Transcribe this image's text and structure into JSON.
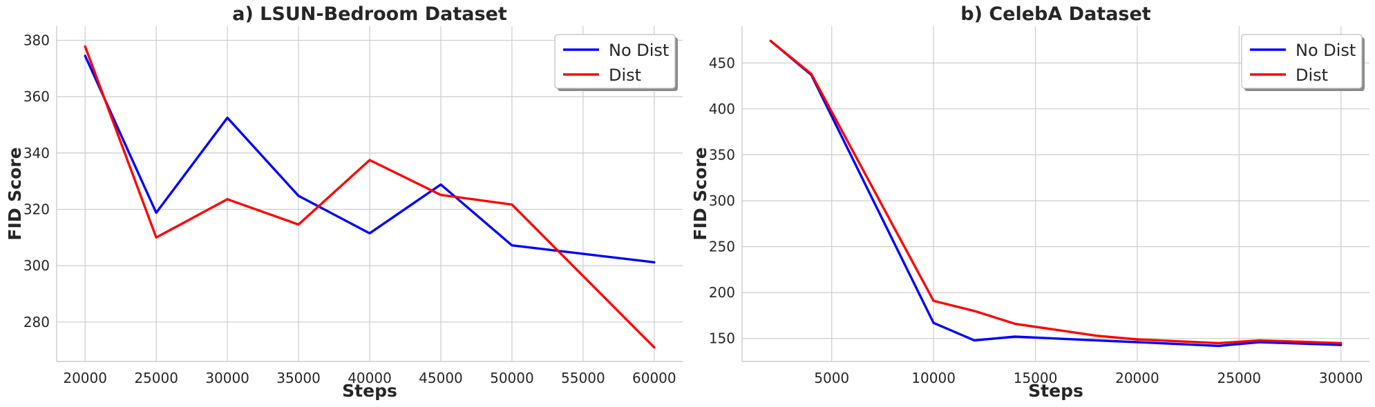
{
  "chart_data": [
    {
      "type": "line",
      "title": "a) LSUN-Bedroom Dataset",
      "xlabel": "Steps",
      "ylabel": "FID Score",
      "x": [
        20000,
        25000,
        30000,
        35000,
        40000,
        45000,
        50000,
        60000
      ],
      "xlim": [
        18000,
        62000
      ],
      "ylim": [
        266,
        385
      ],
      "xticks": [
        20000,
        25000,
        30000,
        35000,
        40000,
        45000,
        50000,
        55000,
        60000
      ],
      "yticks": [
        280,
        300,
        320,
        340,
        360,
        380
      ],
      "grid": true,
      "legend_position": "top-right",
      "series": [
        {
          "name": "No Dist",
          "color": "#0000ff",
          "values": [
            374.5,
            318.8,
            352.5,
            324.8,
            311.5,
            328.8,
            307.2,
            301.2
          ]
        },
        {
          "name": "Dist",
          "color": "#ff0000",
          "values": [
            377.8,
            310.0,
            323.6,
            314.6,
            337.5,
            325.1,
            321.7,
            271.0
          ]
        }
      ]
    },
    {
      "type": "line",
      "title": "b) CelebA Dataset",
      "xlabel": "Steps",
      "ylabel": "FID Score",
      "x": [
        2000,
        4000,
        10000,
        12000,
        14000,
        18000,
        20000,
        24000,
        26000,
        30000
      ],
      "xlim": [
        600,
        31400
      ],
      "ylim": [
        125,
        490
      ],
      "xticks": [
        5000,
        10000,
        15000,
        20000,
        25000,
        30000
      ],
      "yticks": [
        150,
        200,
        250,
        300,
        350,
        400,
        450
      ],
      "grid": true,
      "legend_position": "top-right",
      "series": [
        {
          "name": "No Dist",
          "color": "#0000ff",
          "values": [
            474,
            437,
            167,
            148,
            152,
            148,
            146,
            142,
            146,
            143
          ]
        },
        {
          "name": "Dist",
          "color": "#ff0000",
          "values": [
            474,
            438,
            191,
            180,
            166,
            153,
            149,
            145,
            148,
            145
          ]
        }
      ]
    }
  ]
}
